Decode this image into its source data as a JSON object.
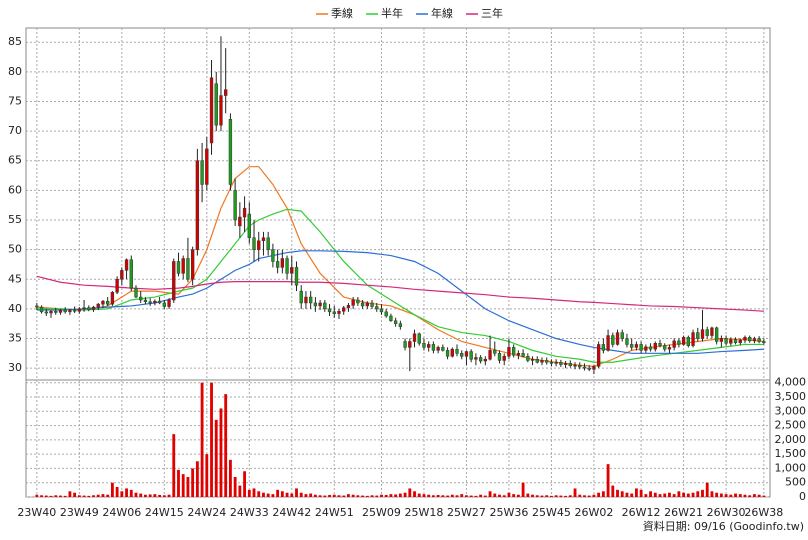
{
  "chart_data": {
    "type": "candlestick",
    "grid": true,
    "up_color": "#d40000",
    "down_color": "#1c9e1c",
    "volume_color": "#e00000",
    "footer": "資料日期: 09/16  (Goodinfo.tw)",
    "xlim": [
      -2.3,
      155.3
    ],
    "xticks": [
      {
        "value": 0,
        "label": "23W40"
      },
      {
        "value": 9,
        "label": "23W49"
      },
      {
        "value": 18,
        "label": "24W06"
      },
      {
        "value": 27,
        "label": "24W15"
      },
      {
        "value": 36,
        "label": "24W24"
      },
      {
        "value": 45,
        "label": "24W33"
      },
      {
        "value": 54,
        "label": "24W42"
      },
      {
        "value": 63,
        "label": "24W51"
      },
      {
        "value": 73,
        "label": "25W09"
      },
      {
        "value": 82,
        "label": "25W18"
      },
      {
        "value": 91,
        "label": "25W27"
      },
      {
        "value": 100,
        "label": "25W36"
      },
      {
        "value": 109,
        "label": "25W45"
      },
      {
        "value": 118,
        "label": "26W02"
      },
      {
        "value": 128,
        "label": "26W12"
      },
      {
        "value": 137,
        "label": "26W21"
      },
      {
        "value": 146,
        "label": "26W30"
      },
      {
        "value": 154,
        "label": "26W38"
      }
    ],
    "ylim": [
      28,
      87.4
    ],
    "yticks": [
      30,
      35,
      40,
      45,
      50,
      55,
      60,
      65,
      70,
      75,
      80,
      85
    ],
    "y2lim": [
      0,
      4200
    ],
    "y2ticks": [
      0,
      500,
      {
        "value": 1000,
        "label": "1,000"
      },
      {
        "value": 1500,
        "label": "1,500"
      },
      {
        "value": 2000,
        "label": "2,000"
      },
      {
        "value": 2500,
        "label": "2,500"
      },
      {
        "value": 3000,
        "label": "3,000"
      },
      {
        "value": 3500,
        "label": "3,500"
      },
      {
        "value": 4000,
        "label": "4,000"
      }
    ],
    "ohlc": [
      [
        40.5,
        41,
        39.8,
        40.3
      ],
      [
        40.3,
        40.6,
        39.2,
        39.5
      ],
      [
        39.5,
        40,
        38.8,
        39.3
      ],
      [
        39.3,
        39.8,
        38.5,
        39.6
      ],
      [
        39.6,
        40.2,
        39,
        39.4
      ],
      [
        39.4,
        40,
        39,
        39.8
      ],
      [
        39.8,
        40.3,
        39.2,
        39.5
      ],
      [
        39.5,
        40,
        39,
        39.8
      ],
      [
        39.8,
        40.4,
        39.3,
        39.6
      ],
      [
        39.6,
        40.3,
        39.2,
        40
      ],
      [
        40,
        41.5,
        39.5,
        40.2
      ],
      [
        40.2,
        40.6,
        39.6,
        39.9
      ],
      [
        39.9,
        40.5,
        39.5,
        40.3
      ],
      [
        40.3,
        41,
        39.8,
        40.8
      ],
      [
        40.8,
        41.5,
        40.2,
        41.3
      ],
      [
        41.3,
        42,
        40.5,
        40.8
      ],
      [
        40.8,
        43,
        40.5,
        42.8
      ],
      [
        42.8,
        45.5,
        42.5,
        45
      ],
      [
        45,
        47,
        44,
        46.5
      ],
      [
        46.5,
        48.5,
        45,
        48.3
      ],
      [
        48.3,
        49,
        43,
        43.5
      ],
      [
        43.5,
        44,
        41.8,
        42
      ],
      [
        42,
        43,
        41,
        41.5
      ],
      [
        41.5,
        42,
        40.8,
        41.2
      ],
      [
        41.2,
        41.8,
        40.5,
        41
      ],
      [
        41,
        41.6,
        40.6,
        41.3
      ],
      [
        41.3,
        42,
        40.8,
        41
      ],
      [
        41,
        41.5,
        40,
        40.4
      ],
      [
        40.4,
        41.8,
        40,
        41.5
      ],
      [
        41.5,
        48.5,
        41,
        48
      ],
      [
        48,
        49.5,
        45.5,
        46
      ],
      [
        46,
        49,
        45,
        48.5
      ],
      [
        48.5,
        52,
        44.5,
        45
      ],
      [
        45,
        50.5,
        44,
        50
      ],
      [
        50,
        67,
        49,
        65
      ],
      [
        65,
        68,
        58,
        61
      ],
      [
        61,
        69,
        60,
        67
      ],
      [
        68,
        82,
        66,
        79
      ],
      [
        78,
        80,
        70,
        71
      ],
      [
        71,
        86,
        70,
        76
      ],
      [
        76,
        84,
        73,
        77
      ],
      [
        72,
        73,
        60,
        61
      ],
      [
        60,
        62,
        54,
        55
      ],
      [
        54,
        58,
        52,
        55.5
      ],
      [
        55.5,
        59,
        53,
        57
      ],
      [
        56,
        58,
        51,
        52
      ],
      [
        52,
        55,
        48,
        50
      ],
      [
        50,
        53,
        48,
        51.5
      ],
      [
        51.5,
        53,
        49,
        52
      ],
      [
        52,
        53,
        49,
        50
      ],
      [
        50,
        51,
        47,
        48
      ],
      [
        48,
        50,
        46,
        47
      ],
      [
        47,
        50,
        46,
        48.5
      ],
      [
        48.5,
        49,
        45,
        46
      ],
      [
        46,
        49,
        44,
        47
      ],
      [
        47,
        48,
        43,
        44
      ],
      [
        43,
        44,
        40,
        41
      ],
      [
        41,
        43,
        40,
        42
      ],
      [
        42,
        43,
        40,
        41
      ],
      [
        41,
        42,
        39.5,
        40.5
      ],
      [
        40.5,
        41.5,
        39.8,
        41
      ],
      [
        41,
        41.5,
        39.5,
        40
      ],
      [
        40,
        40.8,
        38.8,
        39.5
      ],
      [
        39.5,
        40.5,
        38.5,
        39.2
      ],
      [
        39.2,
        40,
        38.3,
        39.6
      ],
      [
        39.6,
        40.5,
        39,
        40.2
      ],
      [
        40.2,
        41,
        39.5,
        40.6
      ],
      [
        40.6,
        42,
        40,
        41.5
      ],
      [
        41.5,
        42,
        40.5,
        41
      ],
      [
        41,
        41.5,
        40,
        40.5
      ],
      [
        40.5,
        41.3,
        40,
        41
      ],
      [
        41,
        41.5,
        40,
        40.4
      ],
      [
        40.4,
        41,
        39.5,
        40
      ],
      [
        40,
        40.8,
        39,
        39.5
      ],
      [
        39.5,
        40,
        38.5,
        38.8
      ],
      [
        38.8,
        39.2,
        37.8,
        38
      ],
      [
        38,
        38.5,
        37,
        37.5
      ],
      [
        37.5,
        38,
        36.5,
        37
      ],
      [
        34.5,
        35,
        33,
        33.5
      ],
      [
        33.5,
        35,
        29.5,
        34.5
      ],
      [
        34.5,
        36.5,
        33.5,
        35.8
      ],
      [
        35.8,
        36,
        33.8,
        34.2
      ],
      [
        34.2,
        35,
        33,
        33.5
      ],
      [
        33.5,
        34.5,
        32.8,
        34
      ],
      [
        34,
        34.5,
        32.5,
        33
      ],
      [
        33,
        33.8,
        32.5,
        33.5
      ],
      [
        33.5,
        34,
        32.8,
        33
      ],
      [
        33,
        33.5,
        31.5,
        32
      ],
      [
        32,
        33.5,
        31.8,
        33.2
      ],
      [
        33.2,
        34,
        32,
        32.5
      ],
      [
        32.5,
        33,
        31.5,
        32
      ],
      [
        32,
        33,
        30.5,
        32.8
      ],
      [
        32.8,
        33.2,
        31,
        31.5
      ],
      [
        31.5,
        32.5,
        30.5,
        31.8
      ],
      [
        31.8,
        32.2,
        30.8,
        31.2
      ],
      [
        31.2,
        32,
        30.5,
        31.5
      ],
      [
        31.5,
        35.5,
        31.3,
        33
      ],
      [
        33,
        34.5,
        32,
        32.5
      ],
      [
        32.5,
        33,
        30.8,
        31.3
      ],
      [
        31.3,
        32.5,
        30.5,
        32
      ],
      [
        32,
        35,
        31.5,
        33.5
      ],
      [
        33.5,
        34,
        31.8,
        32.2
      ],
      [
        32.2,
        33,
        31.5,
        32.5
      ],
      [
        32.5,
        33.2,
        31.8,
        32
      ],
      [
        32,
        32.5,
        31,
        31.3
      ],
      [
        31.3,
        32,
        30.5,
        31.5
      ],
      [
        31.5,
        32,
        30.8,
        31
      ],
      [
        31,
        31.8,
        30.5,
        31.3
      ],
      [
        31.3,
        31.8,
        30.6,
        31
      ],
      [
        31,
        31.5,
        30.3,
        30.8
      ],
      [
        30.8,
        31.5,
        30.3,
        31
      ],
      [
        31,
        31.4,
        30.2,
        30.6
      ],
      [
        30.6,
        31.2,
        30,
        30.8
      ],
      [
        30.8,
        31.3,
        30.1,
        30.4
      ],
      [
        30.4,
        31,
        29.8,
        30.5
      ],
      [
        30.5,
        31,
        29.8,
        30.2
      ],
      [
        30.2,
        30.8,
        29.6,
        30
      ],
      [
        30,
        30.5,
        29.5,
        29.8
      ],
      [
        29.8,
        30.5,
        29,
        30.3
      ],
      [
        30.3,
        34.5,
        30,
        34
      ],
      [
        34,
        35,
        32.5,
        33
      ],
      [
        33,
        36.5,
        32.8,
        35.5
      ],
      [
        35.5,
        36,
        33.5,
        34
      ],
      [
        34,
        36.5,
        33.8,
        36
      ],
      [
        36,
        36.5,
        34.5,
        35
      ],
      [
        35,
        35.8,
        33.5,
        34
      ],
      [
        34,
        35,
        33,
        33.5
      ],
      [
        33.5,
        34.5,
        33,
        34
      ],
      [
        34,
        34.5,
        32.5,
        33
      ],
      [
        33,
        34,
        32.6,
        33.6
      ],
      [
        33.6,
        34.2,
        32.8,
        33.2
      ],
      [
        33.2,
        34.5,
        32.8,
        34.2
      ],
      [
        34.2,
        34.8,
        33.5,
        33.8
      ],
      [
        33.8,
        34.2,
        32.8,
        33.2
      ],
      [
        33.2,
        34,
        32.5,
        33.5
      ],
      [
        33.5,
        35,
        33,
        34.6
      ],
      [
        34.6,
        35,
        33.5,
        34
      ],
      [
        34,
        35.5,
        33.8,
        35.2
      ],
      [
        35.2,
        35.5,
        33.5,
        33.8
      ],
      [
        33.8,
        36.5,
        33.5,
        36
      ],
      [
        36,
        36.8,
        34.5,
        35
      ],
      [
        35,
        39.8,
        34.5,
        36.5
      ],
      [
        36.5,
        37,
        35,
        35.5
      ],
      [
        35.5,
        37,
        35,
        36.8
      ],
      [
        36.8,
        37,
        34,
        34.5
      ],
      [
        34.5,
        35.5,
        33.5,
        35
      ],
      [
        35,
        35.5,
        33.8,
        34.2
      ],
      [
        34.2,
        35.2,
        33.8,
        34.8
      ],
      [
        34.8,
        35.2,
        34,
        34.3
      ],
      [
        34.3,
        35,
        33.9,
        34.7
      ],
      [
        34.7,
        35.5,
        34.2,
        35.2
      ],
      [
        35.2,
        35.5,
        34.3,
        34.6
      ],
      [
        34.6,
        35.3,
        34.2,
        35
      ],
      [
        35,
        35.4,
        34.2,
        34.5
      ],
      [
        34.5,
        35,
        34,
        34.3
      ]
    ],
    "volume": [
      80,
      60,
      50,
      40,
      60,
      50,
      40,
      200,
      150,
      60,
      50,
      40,
      60,
      80,
      100,
      80,
      500,
      350,
      200,
      300,
      250,
      150,
      120,
      80,
      90,
      100,
      70,
      60,
      80,
      2200,
      950,
      800,
      700,
      1000,
      1250,
      4000,
      1500,
      4000,
      2700,
      3100,
      3600,
      1300,
      700,
      400,
      900,
      250,
      300,
      200,
      150,
      120,
      100,
      250,
      200,
      150,
      120,
      300,
      150,
      100,
      120,
      80,
      60,
      50,
      70,
      80,
      60,
      50,
      100,
      80,
      60,
      50,
      40,
      60,
      50,
      80,
      70,
      100,
      90,
      120,
      150,
      300,
      200,
      120,
      100,
      80,
      60,
      70,
      60,
      50,
      80,
      60,
      100,
      60,
      50,
      40,
      80,
      50,
      200,
      120,
      80,
      60,
      150,
      100,
      80,
      500,
      120,
      80,
      60,
      50,
      60,
      40,
      60,
      50,
      40,
      60,
      300,
      80,
      60,
      50,
      80,
      150,
      200,
      1150,
      400,
      250,
      200,
      150,
      120,
      300,
      250,
      100,
      200,
      150,
      100,
      120,
      150,
      100,
      200,
      150,
      120,
      150,
      200,
      250,
      500,
      200,
      150,
      120,
      100,
      80,
      120,
      100,
      80,
      60,
      100,
      80,
      50
    ],
    "series": [
      {
        "name": "季線",
        "color": "#f07820",
        "x": [
          0,
          5,
          10,
          15,
          20,
          25,
          30,
          33,
          36,
          39,
          42,
          45,
          47,
          50,
          53,
          56,
          60,
          65,
          70,
          75,
          80,
          85,
          90,
          95,
          100,
          105,
          110,
          115,
          118,
          122,
          126,
          130,
          135,
          140,
          145,
          150,
          154
        ],
        "values": [
          40.3,
          40,
          39.8,
          40.5,
          43,
          43,
          42.5,
          45,
          50,
          57,
          62,
          64,
          64,
          61,
          57,
          51,
          46,
          42,
          41,
          40.5,
          39,
          36.5,
          34.5,
          33.5,
          32.5,
          31.5,
          31,
          30.5,
          30.3,
          31.5,
          33,
          33.5,
          34,
          34.5,
          35,
          34.8,
          34.5
        ]
      },
      {
        "name": "半年",
        "color": "#33cc33",
        "x": [
          0,
          5,
          10,
          15,
          20,
          25,
          30,
          33,
          36,
          39,
          42,
          45,
          47,
          50,
          53,
          56,
          60,
          65,
          70,
          75,
          80,
          85,
          90,
          95,
          100,
          105,
          110,
          115,
          118,
          122,
          126,
          130,
          135,
          140,
          145,
          150,
          154
        ],
        "values": [
          40,
          40,
          39.8,
          40,
          41.5,
          42,
          43,
          43.5,
          45,
          48,
          51,
          54,
          55,
          56,
          56.8,
          56.5,
          53,
          48,
          44,
          41.5,
          39,
          37,
          36,
          35.5,
          34.5,
          33,
          32,
          31.5,
          31,
          31,
          31.5,
          32,
          32.5,
          33,
          33.5,
          34,
          34
        ]
      },
      {
        "name": "年線",
        "color": "#2a6fd6",
        "x": [
          0,
          5,
          10,
          15,
          20,
          25,
          30,
          33,
          36,
          39,
          42,
          45,
          47,
          50,
          53,
          56,
          60,
          65,
          70,
          75,
          80,
          85,
          90,
          95,
          100,
          105,
          110,
          115,
          118,
          122,
          126,
          130,
          135,
          140,
          145,
          150,
          154
        ],
        "values": [
          39.8,
          39.8,
          40,
          40.3,
          40.5,
          41,
          42,
          42.5,
          43.5,
          45,
          46.5,
          47.5,
          48.5,
          49,
          49.5,
          49.8,
          49.8,
          49.7,
          49.5,
          49,
          48,
          46,
          43,
          40,
          38,
          36.5,
          35,
          34,
          33.5,
          33,
          32.5,
          32.5,
          32.5,
          32.5,
          32.8,
          33,
          33.2
        ]
      },
      {
        "name": "三年",
        "color": "#d6287a",
        "x": [
          0,
          5,
          10,
          15,
          20,
          25,
          30,
          33,
          36,
          39,
          42,
          45,
          47,
          50,
          53,
          56,
          60,
          65,
          70,
          75,
          80,
          85,
          90,
          95,
          100,
          105,
          110,
          115,
          118,
          122,
          126,
          130,
          135,
          140,
          145,
          150,
          154
        ],
        "values": [
          45.5,
          44.5,
          44,
          43.8,
          43.5,
          43.3,
          43.5,
          43.8,
          44.2,
          44.5,
          44.6,
          44.6,
          44.6,
          44.6,
          44.6,
          44.5,
          44.5,
          44.3,
          44,
          43.7,
          43.3,
          43,
          42.7,
          42.4,
          42,
          41.8,
          41.5,
          41.2,
          41.1,
          40.9,
          40.7,
          40.5,
          40.4,
          40.2,
          40,
          39.8,
          39.6
        ]
      }
    ]
  }
}
